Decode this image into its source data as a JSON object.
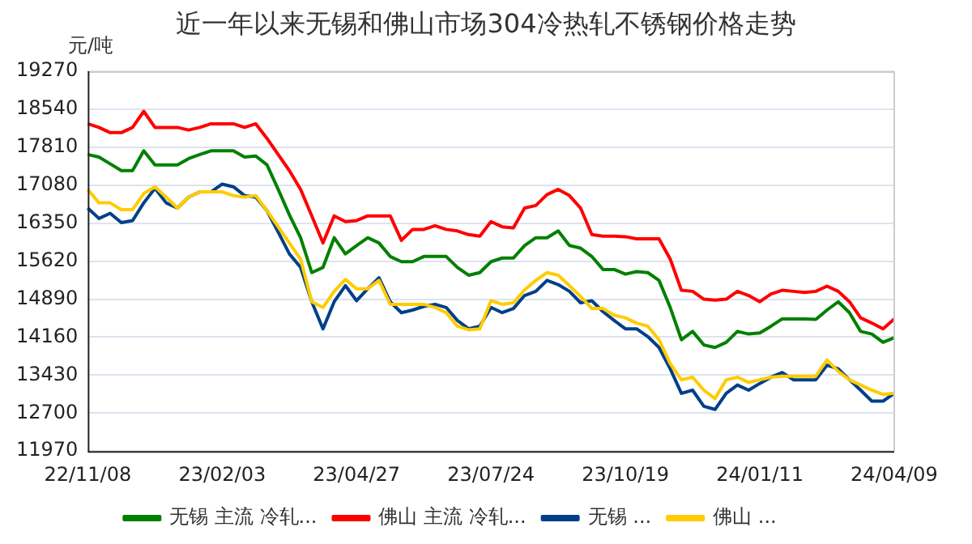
{
  "chart_data": {
    "type": "line",
    "title": "近一年以来无锡和佛山市场304冷热轧不锈钢价格走势",
    "ylabel": "元/吨",
    "categories": [
      "22/11/08",
      null,
      null,
      null,
      null,
      null,
      null,
      null,
      null,
      null,
      null,
      null,
      "23/02/03",
      null,
      null,
      null,
      null,
      null,
      null,
      null,
      null,
      null,
      null,
      null,
      "23/04/27",
      null,
      null,
      null,
      null,
      null,
      null,
      null,
      null,
      null,
      null,
      null,
      "23/07/24",
      null,
      null,
      null,
      null,
      null,
      null,
      null,
      null,
      null,
      null,
      null,
      "23/10/19",
      null,
      null,
      null,
      null,
      null,
      null,
      null,
      null,
      null,
      null,
      null,
      "24/01/11",
      null,
      null,
      null,
      null,
      null,
      null,
      null,
      null,
      null,
      null,
      null,
      "24/04/09"
    ],
    "series": [
      {
        "name": "无锡 主流 冷轧...",
        "color": "#008000",
        "values": [
          17670,
          17620,
          17490,
          17360,
          17360,
          17740,
          17470,
          17470,
          17470,
          17590,
          17670,
          17740,
          17740,
          17740,
          17620,
          17640,
          17470,
          17000,
          16510,
          16070,
          15400,
          15500,
          16070,
          15760,
          15920,
          16070,
          15970,
          15710,
          15610,
          15610,
          15710,
          15710,
          15710,
          15500,
          15350,
          15400,
          15610,
          15680,
          15680,
          15920,
          16070,
          16070,
          16200,
          15920,
          15870,
          15710,
          15460,
          15460,
          15370,
          15420,
          15400,
          15250,
          14730,
          14110,
          14270,
          14010,
          13960,
          14060,
          14270,
          14220,
          14240,
          14370,
          14510,
          14510,
          14510,
          14500,
          14680,
          14840,
          14630,
          14270,
          14220,
          14060,
          14150
        ]
      },
      {
        "name": "佛山 主流 冷轧...",
        "color": "#ff0000",
        "values": [
          18260,
          18190,
          18090,
          18090,
          18190,
          18500,
          18190,
          18190,
          18190,
          18140,
          18190,
          18260,
          18260,
          18260,
          18190,
          18260,
          17980,
          17670,
          17360,
          17000,
          16490,
          15970,
          16490,
          16380,
          16400,
          16490,
          16490,
          16490,
          16020,
          16230,
          16230,
          16300,
          16230,
          16200,
          16130,
          16100,
          16380,
          16280,
          16260,
          16640,
          16690,
          16900,
          17000,
          16880,
          16640,
          16130,
          16100,
          16100,
          16090,
          16050,
          16050,
          16050,
          15660,
          15060,
          15040,
          14890,
          14870,
          14890,
          15040,
          14960,
          14840,
          14990,
          15060,
          15040,
          15020,
          15040,
          15140,
          15040,
          14840,
          14530,
          14430,
          14320,
          14510
        ]
      },
      {
        "name": "无锡 ...",
        "color": "#003f8a",
        "values": [
          16640,
          16440,
          16540,
          16360,
          16400,
          16740,
          17020,
          16740,
          16640,
          16850,
          16950,
          16950,
          17100,
          17050,
          16880,
          16850,
          16590,
          16180,
          15760,
          15500,
          14840,
          14320,
          14840,
          15150,
          14860,
          15090,
          15300,
          14840,
          14630,
          14680,
          14750,
          14790,
          14730,
          14480,
          14320,
          14370,
          14730,
          14630,
          14710,
          14960,
          15040,
          15250,
          15170,
          15040,
          14820,
          14860,
          14650,
          14480,
          14320,
          14320,
          14170,
          13960,
          13550,
          13080,
          13140,
          12830,
          12770,
          13080,
          13240,
          13140,
          13270,
          13390,
          13480,
          13340,
          13340,
          13340,
          13620,
          13550,
          13340,
          13140,
          12930,
          12930,
          13080
        ]
      },
      {
        "name": "佛山 ...",
        "color": "#ffcc00",
        "values": [
          17000,
          16740,
          16740,
          16610,
          16610,
          16920,
          17050,
          16850,
          16640,
          16850,
          16950,
          16950,
          16950,
          16880,
          16850,
          16880,
          16590,
          16280,
          15970,
          15660,
          14840,
          14730,
          15040,
          15270,
          15090,
          15090,
          15250,
          14790,
          14790,
          14790,
          14790,
          14730,
          14630,
          14370,
          14300,
          14320,
          14860,
          14790,
          14820,
          15070,
          15250,
          15400,
          15350,
          15150,
          14940,
          14710,
          14710,
          14580,
          14530,
          14430,
          14370,
          14110,
          13650,
          13340,
          13390,
          13140,
          12980,
          13340,
          13390,
          13290,
          13340,
          13390,
          13410,
          13410,
          13410,
          13410,
          13720,
          13500,
          13340,
          13240,
          13140,
          13060,
          13080
        ]
      }
    ],
    "ylim": [
      11970,
      19270
    ],
    "yticks": [
      11970,
      12700,
      13430,
      14160,
      14890,
      15620,
      16350,
      17080,
      17810,
      18540,
      19270
    ],
    "grid": "y",
    "legend": "bottom",
    "marker": "none",
    "line_style": "solid"
  }
}
